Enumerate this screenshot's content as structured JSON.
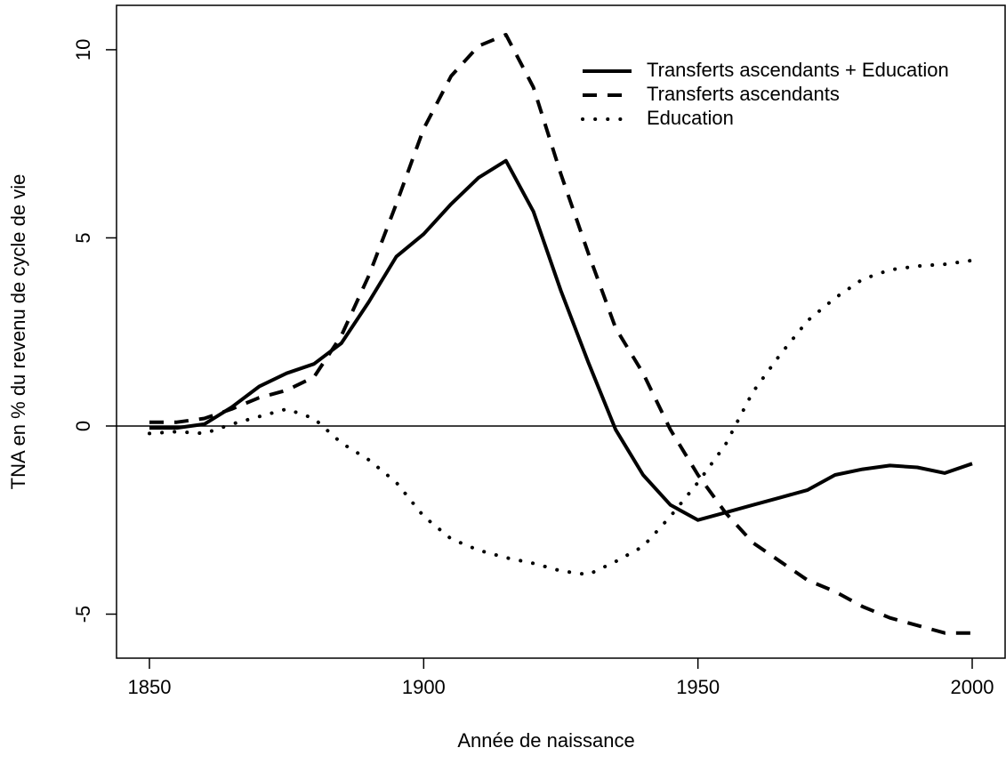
{
  "chart_data": {
    "type": "line",
    "xlabel": "Année de naissance",
    "ylabel": "TNA en % du revenu de cycle de vie",
    "x": [
      1850,
      1855,
      1860,
      1865,
      1870,
      1875,
      1880,
      1885,
      1890,
      1895,
      1900,
      1905,
      1910,
      1915,
      1920,
      1925,
      1930,
      1935,
      1940,
      1945,
      1950,
      1955,
      1960,
      1965,
      1970,
      1975,
      1980,
      1985,
      1990,
      1995,
      2000
    ],
    "series": [
      {
        "name": "Transferts ascendants + Education",
        "color": "#000000",
        "dash": "solid",
        "values": [
          -0.05,
          -0.05,
          0.05,
          0.5,
          1.05,
          1.4,
          1.65,
          2.2,
          3.3,
          4.5,
          5.1,
          5.9,
          6.6,
          7.05,
          5.7,
          3.6,
          1.7,
          -0.1,
          -1.3,
          -2.1,
          -2.5,
          -2.3,
          -2.1,
          -1.9,
          -1.7,
          -1.3,
          -1.15,
          -1.05,
          -1.1,
          -1.25,
          -1.0
        ]
      },
      {
        "name": "Transferts ascendants",
        "color": "#000000",
        "dash": "dashed",
        "values": [
          0.1,
          0.1,
          0.2,
          0.45,
          0.75,
          0.95,
          1.3,
          2.4,
          4.0,
          5.9,
          7.9,
          9.3,
          10.1,
          10.4,
          9.0,
          6.7,
          4.6,
          2.6,
          1.4,
          -0.1,
          -1.3,
          -2.3,
          -3.1,
          -3.6,
          -4.1,
          -4.4,
          -4.8,
          -5.1,
          -5.3,
          -5.5,
          -5.5
        ]
      },
      {
        "name": "Education",
        "color": "#000000",
        "dash": "dotted",
        "values": [
          -0.2,
          -0.15,
          -0.2,
          0.05,
          0.25,
          0.45,
          0.2,
          -0.45,
          -0.9,
          -1.5,
          -2.4,
          -3.0,
          -3.3,
          -3.5,
          -3.65,
          -3.85,
          -3.95,
          -3.6,
          -3.2,
          -2.4,
          -1.5,
          -0.5,
          0.9,
          1.9,
          2.8,
          3.4,
          3.9,
          4.15,
          4.25,
          4.3,
          4.4
        ]
      }
    ],
    "hline": 0,
    "xlim": [
      1844,
      2006
    ],
    "ylim": [
      -6.17,
      11.18
    ],
    "xticks": [
      1850,
      1900,
      1950,
      2000
    ],
    "yticks": [
      -5,
      0,
      5,
      10
    ],
    "legend": "top-right"
  }
}
